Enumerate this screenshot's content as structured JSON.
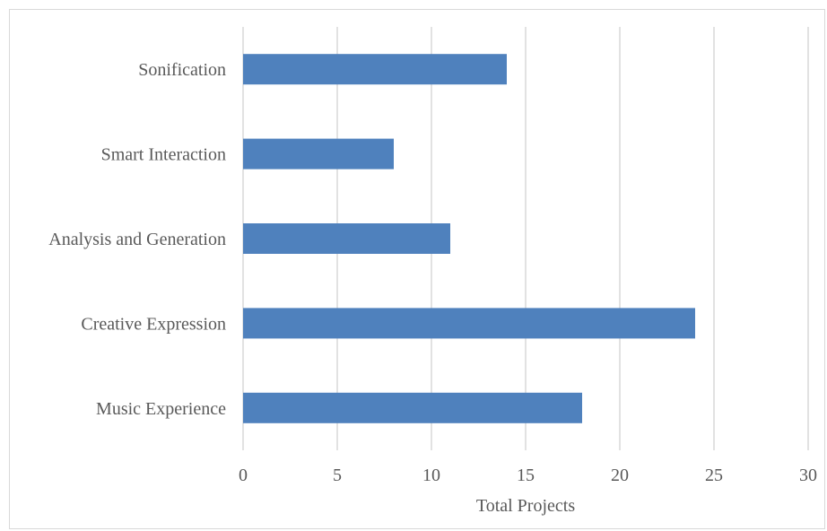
{
  "chart_data": {
    "type": "bar",
    "orientation": "horizontal",
    "categories": [
      "Sonification",
      "Smart Interaction",
      "Analysis and Generation",
      "Creative Expression",
      "Music Experience"
    ],
    "values": [
      14,
      8,
      11,
      24,
      18
    ],
    "title": "",
    "xlabel": "Total Projects",
    "ylabel": "",
    "xlim": [
      0,
      30
    ],
    "xticks": [
      0,
      5,
      10,
      15,
      20,
      25,
      30
    ],
    "grid": true,
    "legend": "none",
    "bar_color": "#4f81bd",
    "grid_color": "#d9d9d9"
  }
}
